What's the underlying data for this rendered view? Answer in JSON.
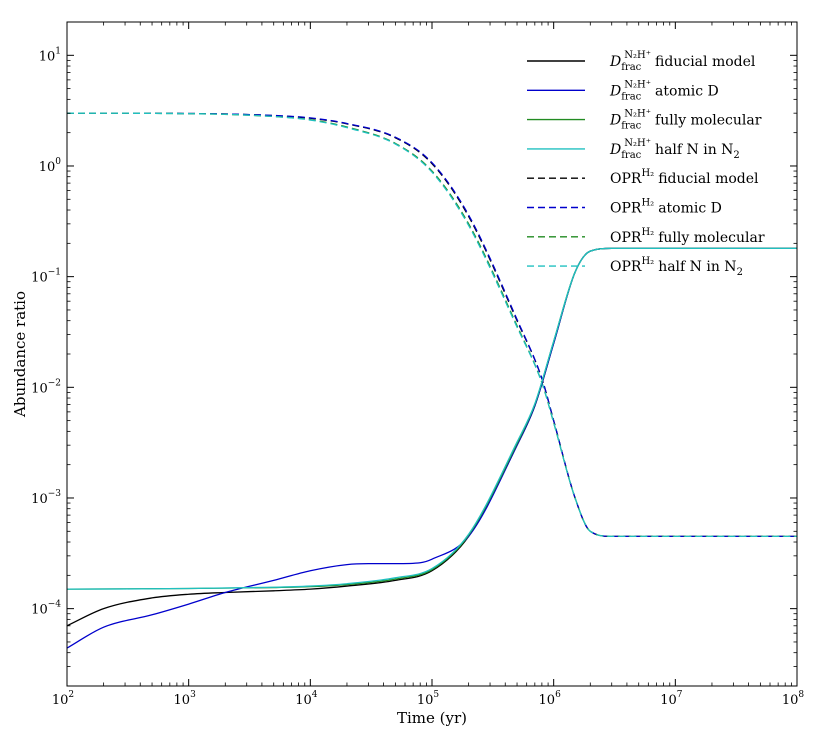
{
  "chart_data": {
    "type": "line",
    "xlabel": "Time (yr)",
    "ylabel": "Abundance ratio",
    "xscale": "log",
    "yscale": "log",
    "xlim": [
      100,
      100000000
    ],
    "ylim": [
      2e-05,
      20
    ],
    "x_ticks": [
      {
        "base": "10",
        "exp": "2"
      },
      {
        "base": "10",
        "exp": "3"
      },
      {
        "base": "10",
        "exp": "4"
      },
      {
        "base": "10",
        "exp": "5"
      },
      {
        "base": "10",
        "exp": "6"
      },
      {
        "base": "10",
        "exp": "7"
      },
      {
        "base": "10",
        "exp": "8"
      }
    ],
    "y_ticks": [
      {
        "base": "10",
        "exp": "−4"
      },
      {
        "base": "10",
        "exp": "−3"
      },
      {
        "base": "10",
        "exp": "−2"
      },
      {
        "base": "10",
        "exp": "−1"
      },
      {
        "base": "10",
        "exp": "0"
      },
      {
        "base": "10",
        "exp": "1"
      }
    ],
    "legend_position": "top-right",
    "series": [
      {
        "name": "fiducial model",
        "kind": "Dfrac",
        "label_main": "D",
        "label_sub": "frac",
        "label_sup": "N₂H⁺",
        "label_text": "fiducial model",
        "color": "#000000",
        "dash": "solid",
        "x": [
          100,
          200,
          500,
          1000,
          2000,
          5000,
          10000,
          20000,
          50000,
          100000,
          200000,
          500000,
          700000,
          1000000,
          1500000,
          2000000,
          3000000,
          10000000,
          100000000
        ],
        "y": [
          7e-05,
          0.0001,
          0.000125,
          0.000135,
          0.00014,
          0.000145,
          0.00015,
          0.00016,
          0.00018,
          0.00022,
          0.00045,
          0.003,
          0.0068,
          0.025,
          0.11,
          0.17,
          0.18,
          0.18,
          0.18
        ]
      },
      {
        "name": "atomic D",
        "kind": "Dfrac",
        "label_main": "D",
        "label_sub": "frac",
        "label_sup": "N₂H⁺",
        "label_text": "atomic D",
        "color": "#0000cc",
        "dash": "solid",
        "x": [
          100,
          200,
          500,
          1000,
          2000,
          5000,
          10000,
          20000,
          30000,
          50000,
          80000,
          100000,
          200000,
          500000,
          700000,
          1000000,
          1500000,
          2000000,
          3000000,
          10000000,
          100000000
        ],
        "y": [
          4.4e-05,
          6.8e-05,
          8.8e-05,
          0.00011,
          0.00014,
          0.00018,
          0.00022,
          0.00025,
          0.000255,
          0.000255,
          0.00026,
          0.00028,
          0.00045,
          0.003,
          0.0068,
          0.025,
          0.11,
          0.17,
          0.18,
          0.18,
          0.18
        ]
      },
      {
        "name": "fully molecular",
        "kind": "Dfrac",
        "label_main": "D",
        "label_sub": "frac",
        "label_sup": "N₂H⁺",
        "label_text": "fully molecular",
        "color": "#228b22",
        "dash": "solid",
        "x": [
          100,
          1000,
          5000,
          10000,
          20000,
          50000,
          100000,
          200000,
          500000,
          700000,
          1000000,
          1500000,
          2000000,
          3000000,
          10000000,
          100000000
        ],
        "y": [
          0.00015,
          0.000152,
          0.000155,
          0.000158,
          0.000165,
          0.000185,
          0.000225,
          0.00046,
          0.0031,
          0.007,
          0.026,
          0.11,
          0.17,
          0.18,
          0.18,
          0.18
        ]
      },
      {
        "name": "half N in N2",
        "kind": "Dfrac",
        "label_main": "D",
        "label_sub": "frac",
        "label_sup": "N₂H⁺",
        "label_text": "half N in N",
        "label_tail_sub": "2",
        "color": "#20c0c0",
        "dash": "solid",
        "x": [
          100,
          1000,
          5000,
          10000,
          20000,
          50000,
          100000,
          200000,
          500000,
          700000,
          1000000,
          1500000,
          2000000,
          3000000,
          10000000,
          100000000
        ],
        "y": [
          0.00015,
          0.000152,
          0.000156,
          0.00016,
          0.000168,
          0.00019,
          0.00023,
          0.00047,
          0.0032,
          0.0071,
          0.026,
          0.11,
          0.17,
          0.18,
          0.18,
          0.18
        ]
      },
      {
        "name": "OPR fiducial model",
        "kind": "OPR",
        "label_main": "OPR",
        "label_sup": "H₂",
        "label_text": "fiducial model",
        "color": "#000000",
        "dash": "dashed",
        "x": [
          100,
          1000,
          5000,
          10000,
          20000,
          50000,
          100000,
          200000,
          500000,
          800000,
          1000000,
          1500000,
          2000000,
          3000000,
          10000000,
          100000000
        ],
        "y": [
          3.0,
          2.98,
          2.85,
          2.7,
          2.4,
          1.8,
          1.05,
          0.35,
          0.04,
          0.012,
          0.005,
          0.001,
          0.0005,
          0.00045,
          0.00045,
          0.00045
        ]
      },
      {
        "name": "OPR atomic D",
        "kind": "OPR",
        "label_main": "OPR",
        "label_sup": "H₂",
        "label_text": "atomic D",
        "color": "#0000cc",
        "dash": "dashed",
        "x": [
          100,
          1000,
          5000,
          10000,
          20000,
          50000,
          100000,
          200000,
          500000,
          800000,
          1000000,
          1500000,
          2000000,
          3000000,
          10000000,
          100000000
        ],
        "y": [
          3.0,
          2.98,
          2.86,
          2.72,
          2.42,
          1.82,
          1.07,
          0.36,
          0.041,
          0.012,
          0.005,
          0.001,
          0.0005,
          0.00045,
          0.00045,
          0.00045
        ]
      },
      {
        "name": "OPR fully molecular",
        "kind": "OPR",
        "label_main": "OPR",
        "label_sup": "H₂",
        "label_text": "fully molecular",
        "color": "#228b22",
        "dash": "dashed",
        "x": [
          100,
          1000,
          5000,
          10000,
          20000,
          50000,
          100000,
          200000,
          500000,
          800000,
          1000000,
          1500000,
          2000000,
          3000000,
          10000000,
          100000000
        ],
        "y": [
          3.0,
          2.97,
          2.8,
          2.62,
          2.25,
          1.6,
          0.9,
          0.3,
          0.036,
          0.011,
          0.0048,
          0.001,
          0.0005,
          0.00045,
          0.00045,
          0.00045
        ]
      },
      {
        "name": "OPR half N in N2",
        "kind": "OPR",
        "label_main": "OPR",
        "label_sup": "H₂",
        "label_text": "half N in N",
        "label_tail_sub": "2",
        "color": "#20c0c0",
        "dash": "dashed",
        "x": [
          100,
          1000,
          5000,
          10000,
          20000,
          50000,
          100000,
          200000,
          500000,
          800000,
          1000000,
          1500000,
          2000000,
          3000000,
          10000000,
          100000000
        ],
        "y": [
          3.0,
          2.97,
          2.8,
          2.6,
          2.22,
          1.58,
          0.88,
          0.29,
          0.035,
          0.011,
          0.0048,
          0.001,
          0.0005,
          0.00045,
          0.00045,
          0.00045
        ]
      }
    ]
  }
}
